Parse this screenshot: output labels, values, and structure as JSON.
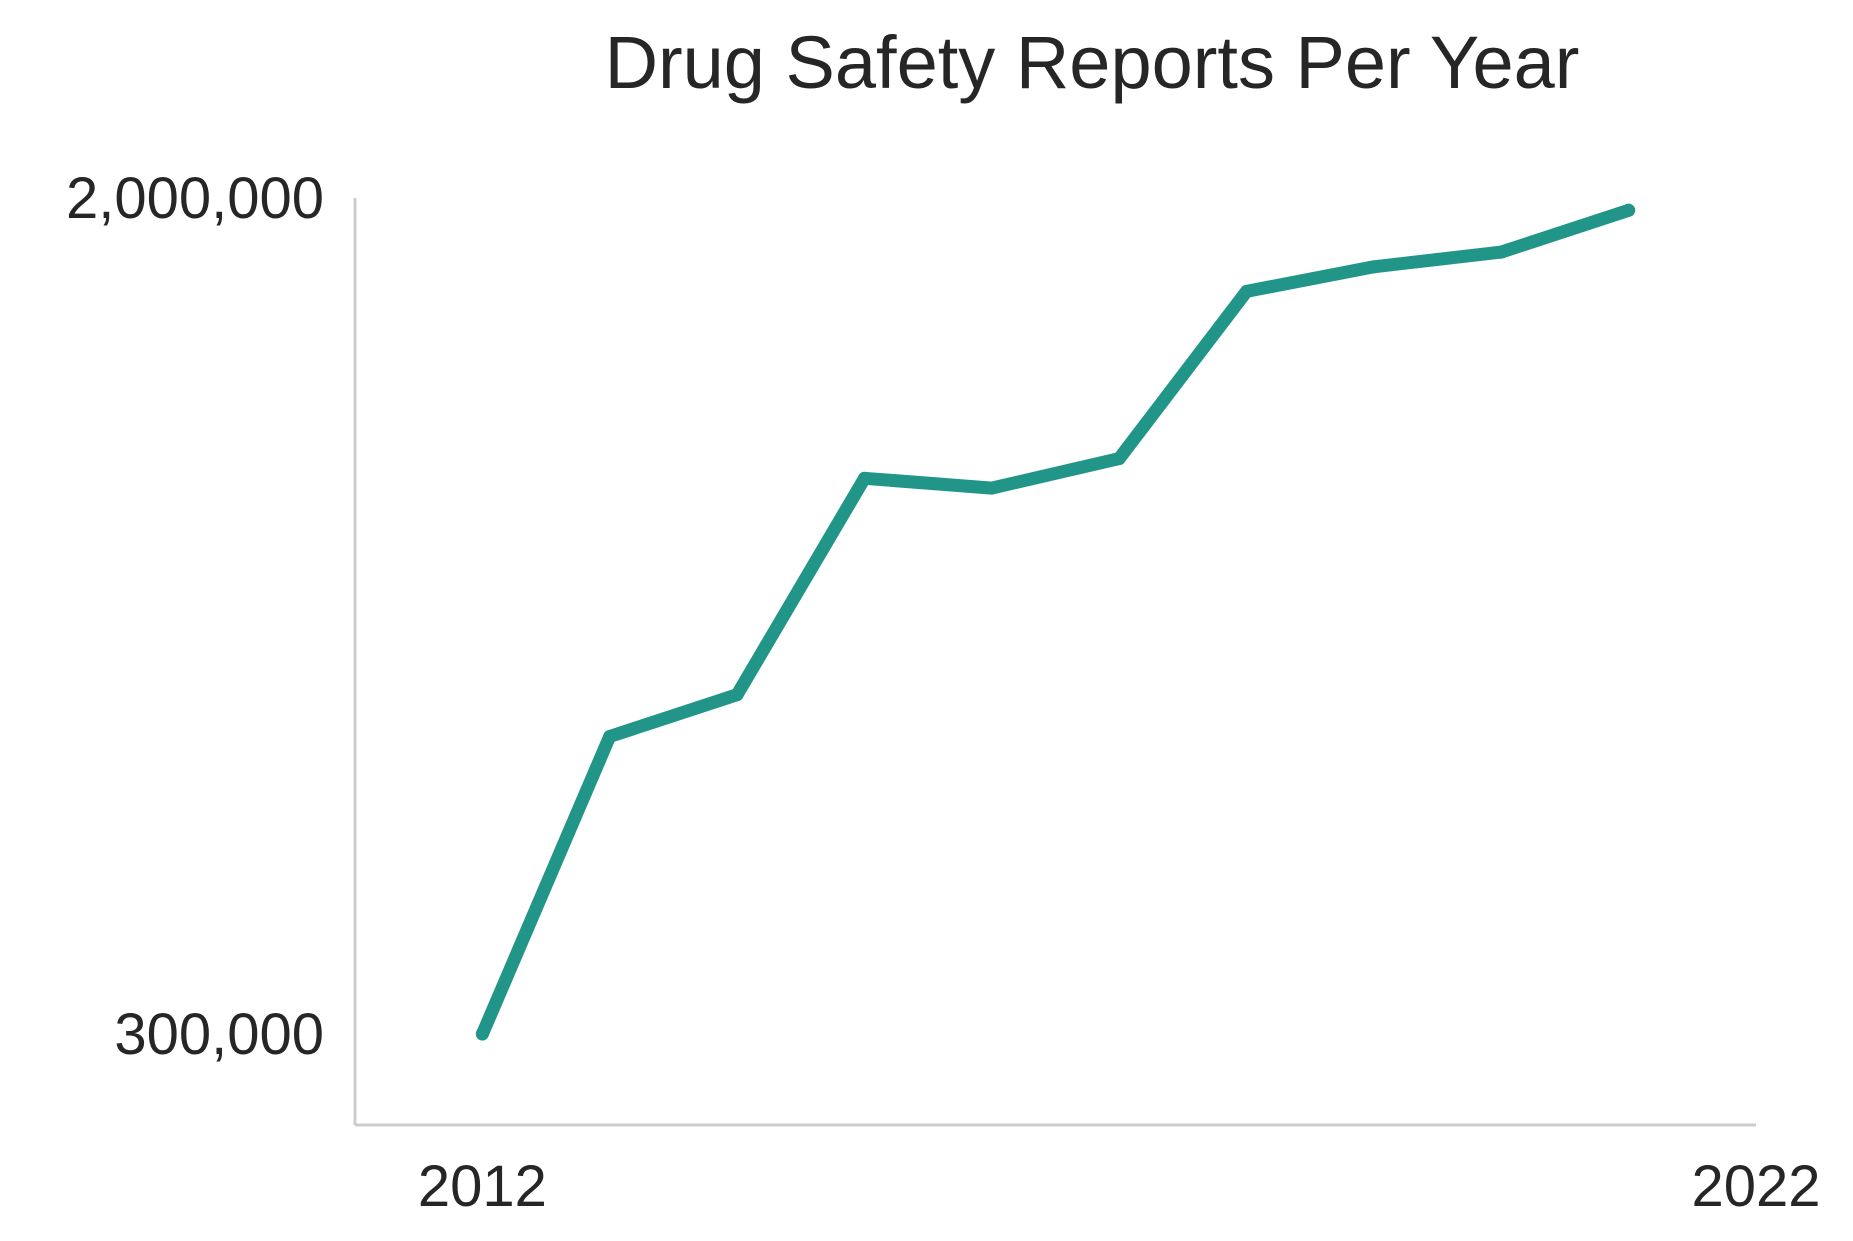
{
  "chart_data": {
    "type": "line",
    "title": "Drug Safety Reports Per Year",
    "xlabel": "",
    "ylabel": "",
    "x": [
      2012,
      2013,
      2014,
      2015,
      2016,
      2017,
      2018,
      2019,
      2020,
      2021
    ],
    "series": [
      {
        "values": [
          300000,
          905000,
          990000,
          1430000,
          1410000,
          1470000,
          1810000,
          1860000,
          1890000,
          1975000
        ],
        "color": "#229589"
      }
    ],
    "x_ticks": [
      {
        "value": 2012,
        "label": "2012"
      },
      {
        "value": 2022,
        "label": "2022"
      }
    ],
    "y_ticks": [
      {
        "value": 300000,
        "label": "300,000"
      },
      {
        "value": 2000000,
        "label": "2,000,000"
      }
    ],
    "xlim": [
      2011,
      2022
    ],
    "ylim": [
      115000,
      2000000
    ],
    "grid": false,
    "legend": "none"
  }
}
